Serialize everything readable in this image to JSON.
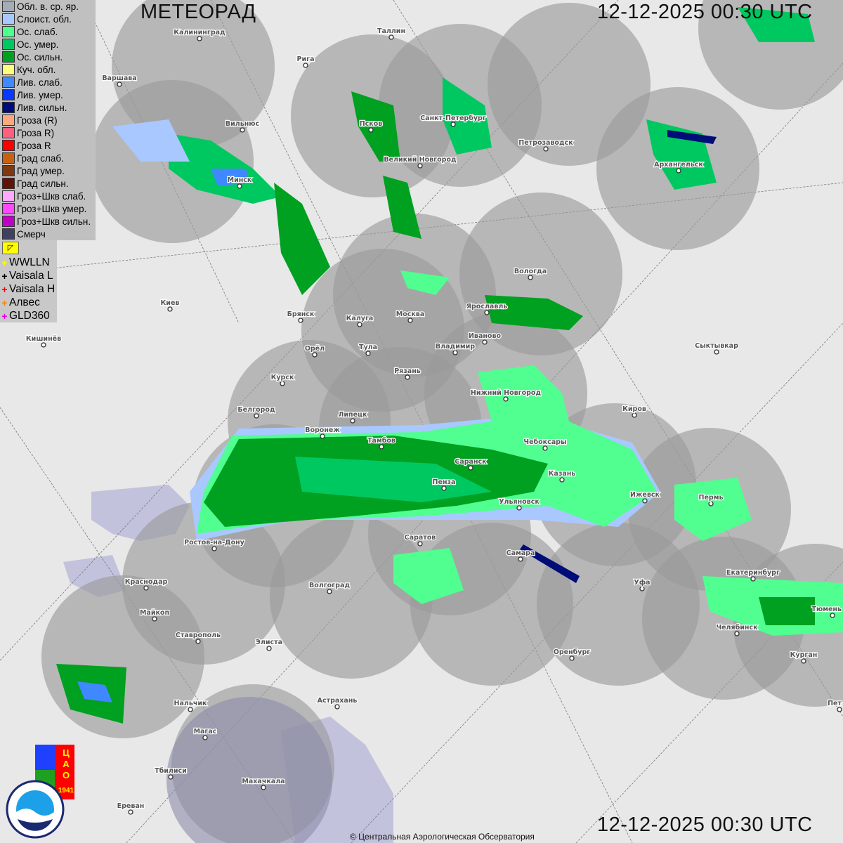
{
  "header": {
    "title": "МЕТЕОРАД",
    "timestamp_top": "12-12-2025  00:30 UTC",
    "timestamp_bottom": "12-12-2025  00:30 UTC"
  },
  "legend": {
    "items": [
      {
        "label": "Обл. в. ср. яр.",
        "color": "#a3adb5"
      },
      {
        "label": "Слоист. обл.",
        "color": "#a8c8ff"
      },
      {
        "label": "Ос. слаб.",
        "color": "#50ff90"
      },
      {
        "label": "Ос. умер.",
        "color": "#00c860"
      },
      {
        "label": "Ос. сильн.",
        "color": "#00a020"
      },
      {
        "label": "Куч. обл.",
        "color": "#ffff80"
      },
      {
        "label": "Лив. слаб.",
        "color": "#4088ff"
      },
      {
        "label": "Лив. умер.",
        "color": "#0838ff"
      },
      {
        "label": "Лив. сильн.",
        "color": "#000c78"
      },
      {
        "label": "Гроза (R)",
        "color": "#ffa880"
      },
      {
        "label": "Гроза R)",
        "color": "#ff6080"
      },
      {
        "label": "Гроза R",
        "color": "#ff0000"
      },
      {
        "label": "Град слаб.",
        "color": "#c86010"
      },
      {
        "label": "Град умер.",
        "color": "#803810"
      },
      {
        "label": "Град сильн.",
        "color": "#601408"
      },
      {
        "label": "Гроз+Шкв слаб.",
        "color": "#ffa8ff"
      },
      {
        "label": "Гроз+Шкв умер.",
        "color": "#ff48ff"
      },
      {
        "label": "Гроз+Шкв сильн.",
        "color": "#c000c8"
      },
      {
        "label": "Смерч",
        "color": "#404060"
      }
    ],
    "toggle_icon": "flag-icon",
    "lightning": [
      {
        "label": "WWLLN",
        "color": "#ffff00"
      },
      {
        "label": "Vaisala L",
        "color": "#000000"
      },
      {
        "label": "Vaisala H",
        "color": "#ff0000"
      },
      {
        "label": "Алвес",
        "color": "#ff8000"
      },
      {
        "label": "GLD360",
        "color": "#e000e0"
      }
    ]
  },
  "cities": [
    "Калининград",
    "Таллин",
    "Рига",
    "Варшава",
    "Вильнюс",
    "Псков",
    "Санкт-Петербург",
    "Петрозаводск",
    "Архангельск",
    "Великий Новгород",
    "Минск",
    "Вологда",
    "Ярославль",
    "Москва",
    "Калуга",
    "Брянск",
    "Киев",
    "Кишинёв",
    "Иваново",
    "Владимир",
    "Тула",
    "Орёл",
    "Сыктывкар",
    "Рязань",
    "Курск",
    "Нижний Новгород",
    "Киров",
    "Белгород",
    "Липецк",
    "Воронеж",
    "Тамбов",
    "Чебоксары",
    "Саранск",
    "Казань",
    "Пенза",
    "Ижевск",
    "Ульяновск",
    "Пермь",
    "Ростов-на-Дону",
    "Саратов",
    "Самара",
    "Краснодар",
    "Екатеринбург",
    "Уфа",
    "Волгоград",
    "Майкоп",
    "Тюмень",
    "Челябинск",
    "Ставрополь",
    "Элиста",
    "Курган",
    "Оренбург",
    "Пет",
    "Астрахань",
    "Нальчик",
    "Магас",
    "Тбилиси",
    "Махачкала",
    "Ереван"
  ],
  "logos": {
    "cao": "ЦАО 1941",
    "roshydromet": "РОСГИДРОМЕТ ROSHYDROMET"
  },
  "footer": {
    "copyright": "© Центральная Аэрологическая Обсерватория"
  }
}
